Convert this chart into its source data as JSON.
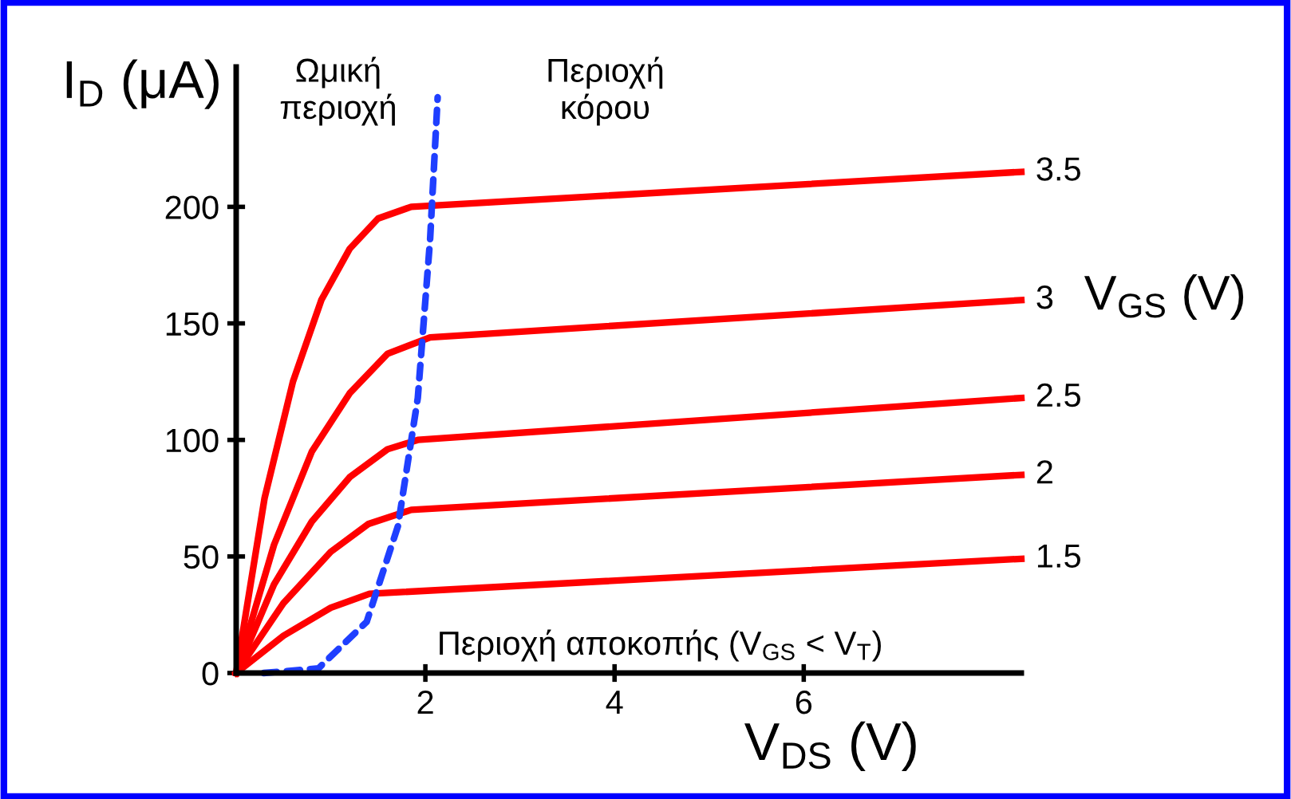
{
  "chart_data": {
    "type": "line",
    "xlabel": "V$_{DS}$ (V)",
    "ylabel": "I$_{D}$ (μA)",
    "legend_title": "V$_{GS}$ (V)",
    "xlim": [
      0,
      8.3
    ],
    "ylim": [
      0,
      260
    ],
    "xticks": [
      2,
      4,
      6
    ],
    "yticks": [
      0,
      50,
      100,
      150,
      200
    ],
    "grid": false,
    "line_style": "solid",
    "series": [
      {
        "name": "3.5",
        "color": "#ff0000",
        "x": [
          0,
          0.3,
          0.6,
          0.9,
          1.2,
          1.5,
          1.85,
          8.3
        ],
        "values": [
          0,
          75,
          125,
          160,
          182,
          195,
          200,
          215
        ]
      },
      {
        "name": "3",
        "color": "#ff0000",
        "x": [
          0,
          0.4,
          0.8,
          1.2,
          1.6,
          2.05,
          8.3
        ],
        "values": [
          0,
          55,
          95,
          120,
          137,
          144,
          160
        ]
      },
      {
        "name": "2.5",
        "color": "#ff0000",
        "x": [
          0,
          0.4,
          0.8,
          1.2,
          1.6,
          1.92,
          8.3
        ],
        "values": [
          0,
          38,
          65,
          84,
          96,
          100,
          118
        ]
      },
      {
        "name": "2",
        "color": "#ff0000",
        "x": [
          0,
          0.5,
          1.0,
          1.4,
          1.85,
          8.3
        ],
        "values": [
          0,
          30,
          52,
          64,
          70,
          85
        ]
      },
      {
        "name": "1.5",
        "color": "#ff0000",
        "x": [
          0,
          0.5,
          1.0,
          1.41,
          8.3
        ],
        "values": [
          0,
          16,
          28,
          34,
          49
        ]
      },
      {
        "color": "#1f3fff",
        "line_style": "dotted",
        "x": [
          0.29,
          0.87,
          1.38,
          1.71,
          1.92,
          2.05,
          2.13
        ],
        "values": [
          0,
          2,
          22,
          63,
          118,
          186,
          247
        ]
      }
    ],
    "annotations": [
      "Ωμική\nπεριοχή",
      "Περιοχή\nκόρου",
      "Περιοχή αποκοπής (V$_{GS}$ < V$_{T}$)"
    ]
  }
}
